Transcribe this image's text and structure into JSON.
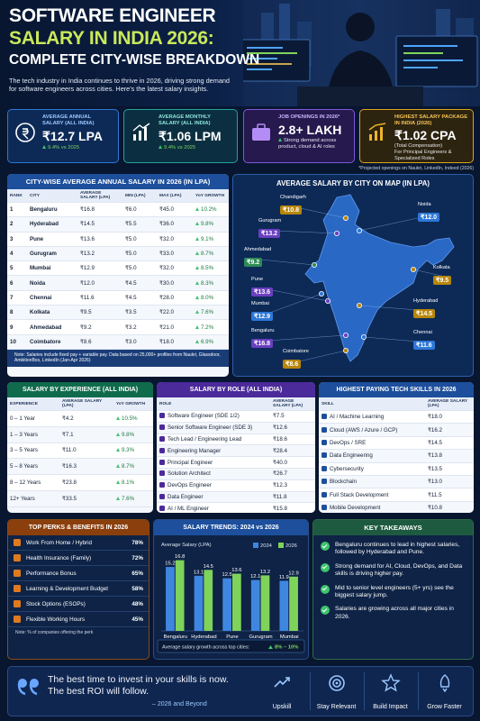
{
  "header": {
    "title_lines": [
      "SOFTWARE ENGINEER",
      "SALARY IN INDIA 2026:",
      "COMPLETE CITY-WISE BREAKDOWN"
    ],
    "intro": "The tech industry in India continues to thrive in 2026, driving strong demand for software engineers across cities. Here's the latest salary insights."
  },
  "stats": [
    {
      "label": "AVERAGE ANNUAL SALARY (ALL INDIA)",
      "value": "₹12.7 LPA",
      "note": "9.4% vs 2025"
    },
    {
      "label": "AVERAGE MONTHLY SALARY (ALL INDIA)",
      "value": "₹1.06 LPM",
      "note": "9.4% vs 2025"
    },
    {
      "label": "JOB OPENINGS IN 2026*",
      "value": "2.8+ LAKH",
      "note": "Strong demand across product, cloud & AI roles"
    },
    {
      "label": "HIGHEST SALARY PACKAGE IN INDIA (2026)",
      "value": "₹1.02 CPA",
      "note": "(Total Compensation)",
      "detail": "For Principal Engineers & Specialized Roles"
    }
  ],
  "stats_footnote": "*Projected openings on Naukri, LinkedIn, Indeed (2026)",
  "city_table": {
    "title": "CITY-WISE AVERAGE ANNUAL SALARY IN 2026 (IN LPA)",
    "columns": [
      "RANK",
      "CITY",
      "AVERAGE SALARY (LPA)",
      "MIN (LPA)",
      "MAX (LPA)",
      "YoY GROWTH"
    ],
    "rows": [
      [
        "1",
        "Bengaluru",
        "₹16.8",
        "₹6.0",
        "₹45.0",
        "10.2%"
      ],
      [
        "2",
        "Hyderabad",
        "₹14.5",
        "₹5.5",
        "₹36.0",
        "9.8%"
      ],
      [
        "3",
        "Pune",
        "₹13.6",
        "₹5.0",
        "₹32.0",
        "9.1%"
      ],
      [
        "4",
        "Gurugram",
        "₹13.2",
        "₹5.0",
        "₹33.0",
        "8.7%"
      ],
      [
        "5",
        "Mumbai",
        "₹12.9",
        "₹5.0",
        "₹32.0",
        "8.5%"
      ],
      [
        "6",
        "Noida",
        "₹12.0",
        "₹4.5",
        "₹30.0",
        "8.3%"
      ],
      [
        "7",
        "Chennai",
        "₹11.6",
        "₹4.5",
        "₹28.0",
        "8.0%"
      ],
      [
        "8",
        "Kolkata",
        "₹9.5",
        "₹3.5",
        "₹22.0",
        "7.6%"
      ],
      [
        "9",
        "Ahmedabad",
        "₹9.2",
        "₹3.2",
        "₹21.0",
        "7.2%"
      ],
      [
        "10",
        "Coimbatore",
        "₹8.6",
        "₹3.0",
        "₹18.0",
        "6.9%"
      ]
    ],
    "note": "Note: Salaries include fixed pay + variable pay. Data based on 25,000+ profiles from Naukri, Glassdoor, AmbitionBox, LinkedIn (Jan-Apr 2026)"
  },
  "map": {
    "title": "AVERAGE SALARY BY CITY ON MAP (IN LPA)",
    "cities": [
      {
        "name": "Chandigarh",
        "value": "₹10.8"
      },
      {
        "name": "Gurugram",
        "value": "₹13.2"
      },
      {
        "name": "Noida",
        "value": "₹12.0"
      },
      {
        "name": "Ahmedabad",
        "value": "₹9.2"
      },
      {
        "name": "Kolkata",
        "value": "₹9.5"
      },
      {
        "name": "Pune",
        "value": "₹13.6"
      },
      {
        "name": "Mumbai",
        "value": "₹12.9"
      },
      {
        "name": "Hyderabad",
        "value": "₹14.5"
      },
      {
        "name": "Bengaluru",
        "value": "₹16.8"
      },
      {
        "name": "Chennai",
        "value": "₹11.6"
      },
      {
        "name": "Coimbatore",
        "value": "₹8.6"
      }
    ]
  },
  "experience": {
    "title": "SALARY BY EXPERIENCE (ALL INDIA)",
    "columns": [
      "EXPERIENCE",
      "AVERAGE SALARY (LPA)",
      "YoY GROWTH"
    ],
    "rows": [
      [
        "0 – 1 Year",
        "₹4.2",
        "10.5%"
      ],
      [
        "1 – 3 Years",
        "₹7.1",
        "9.8%"
      ],
      [
        "3 – 5 Years",
        "₹11.0",
        "9.3%"
      ],
      [
        "5 – 8 Years",
        "₹16.3",
        "8.7%"
      ],
      [
        "8 – 12 Years",
        "₹23.8",
        "8.1%"
      ],
      [
        "12+ Years",
        "₹33.5",
        "7.6%"
      ]
    ]
  },
  "roles": {
    "title": "SALARY BY ROLE (ALL INDIA)",
    "columns": [
      "ROLE",
      "AVERAGE SALARY (LPA)"
    ],
    "rows": [
      [
        "Software Engineer (SDE 1/2)",
        "₹7.5"
      ],
      [
        "Senior Software Engineer (SDE 3)",
        "₹12.6"
      ],
      [
        "Tech Lead / Engineering Lead",
        "₹18.6"
      ],
      [
        "Engineering Manager",
        "₹28.4"
      ],
      [
        "Principal Engineer",
        "₹40.0"
      ],
      [
        "Solution Architect",
        "₹26.7"
      ],
      [
        "DevOps Engineer",
        "₹12.3"
      ],
      [
        "Data Engineer",
        "₹11.8"
      ],
      [
        "AI / ML Engineer",
        "₹15.8"
      ]
    ]
  },
  "skills": {
    "title": "HIGHEST PAYING TECH SKILLS IN 2026",
    "columns": [
      "SKILL",
      "AVERAGE SALARY (LPA)"
    ],
    "rows": [
      [
        "AI / Machine Learning",
        "₹18.0"
      ],
      [
        "Cloud (AWS / Azure / GCP)",
        "₹16.2"
      ],
      [
        "DevOps / SRE",
        "₹14.5"
      ],
      [
        "Data Engineering",
        "₹13.8"
      ],
      [
        "Cybersecurity",
        "₹13.5"
      ],
      [
        "Blockchain",
        "₹13.0"
      ],
      [
        "Full Stack Development",
        "₹11.5"
      ],
      [
        "Mobile Development",
        "₹10.8"
      ]
    ]
  },
  "perks": {
    "title": "TOP PERKS & BENEFITS IN 2026",
    "items": [
      {
        "name": "Work From Home / Hybrid",
        "value": "78%"
      },
      {
        "name": "Health Insurance (Family)",
        "value": "72%"
      },
      {
        "name": "Performance Bonus",
        "value": "65%"
      },
      {
        "name": "Learning & Development Budget",
        "value": "58%"
      },
      {
        "name": "Stock Options (ESOPs)",
        "value": "48%"
      },
      {
        "name": "Flexible Working Hours",
        "value": "45%"
      }
    ],
    "note": "Note: % of companies offering the perk"
  },
  "chart_data": {
    "type": "bar",
    "title": "SALARY TRENDS: 2024 vs 2026",
    "y_label": "Average Salary (LPA)",
    "categories": [
      "Bengaluru",
      "Hyderabad",
      "Pune",
      "Gurugram",
      "Mumbai"
    ],
    "series": [
      {
        "name": "2024",
        "color": "#3f86e0",
        "values": [
          15.2,
          13.1,
          12.5,
          12.1,
          11.9
        ]
      },
      {
        "name": "2026",
        "color": "#7fd35a",
        "values": [
          16.8,
          14.5,
          13.6,
          13.2,
          12.9
        ]
      }
    ],
    "ylim": [
      0,
      18
    ],
    "footnote_label": "Average salary growth across top cities:",
    "footnote_value": "8% – 10%"
  },
  "takeaways": {
    "title": "KEY TAKEAWAYS",
    "items": [
      "Bengaluru continues to lead in highest salaries, followed by Hyderabad and Pune.",
      "Strong demand for AI, Cloud, DevOps, and Data skills is driving higher pay.",
      "Mid to senior level engineers (5+ yrs) see the biggest salary jump.",
      "Salaries are growing across all major cities in 2026."
    ]
  },
  "footer": {
    "quote": "The best time to invest in your skills is now. The best ROI will follow.",
    "attribution": "– 2026 and Beyond",
    "icons": [
      "Upskill",
      "Stay Relevant",
      "Build Impact",
      "Grow Faster"
    ]
  }
}
